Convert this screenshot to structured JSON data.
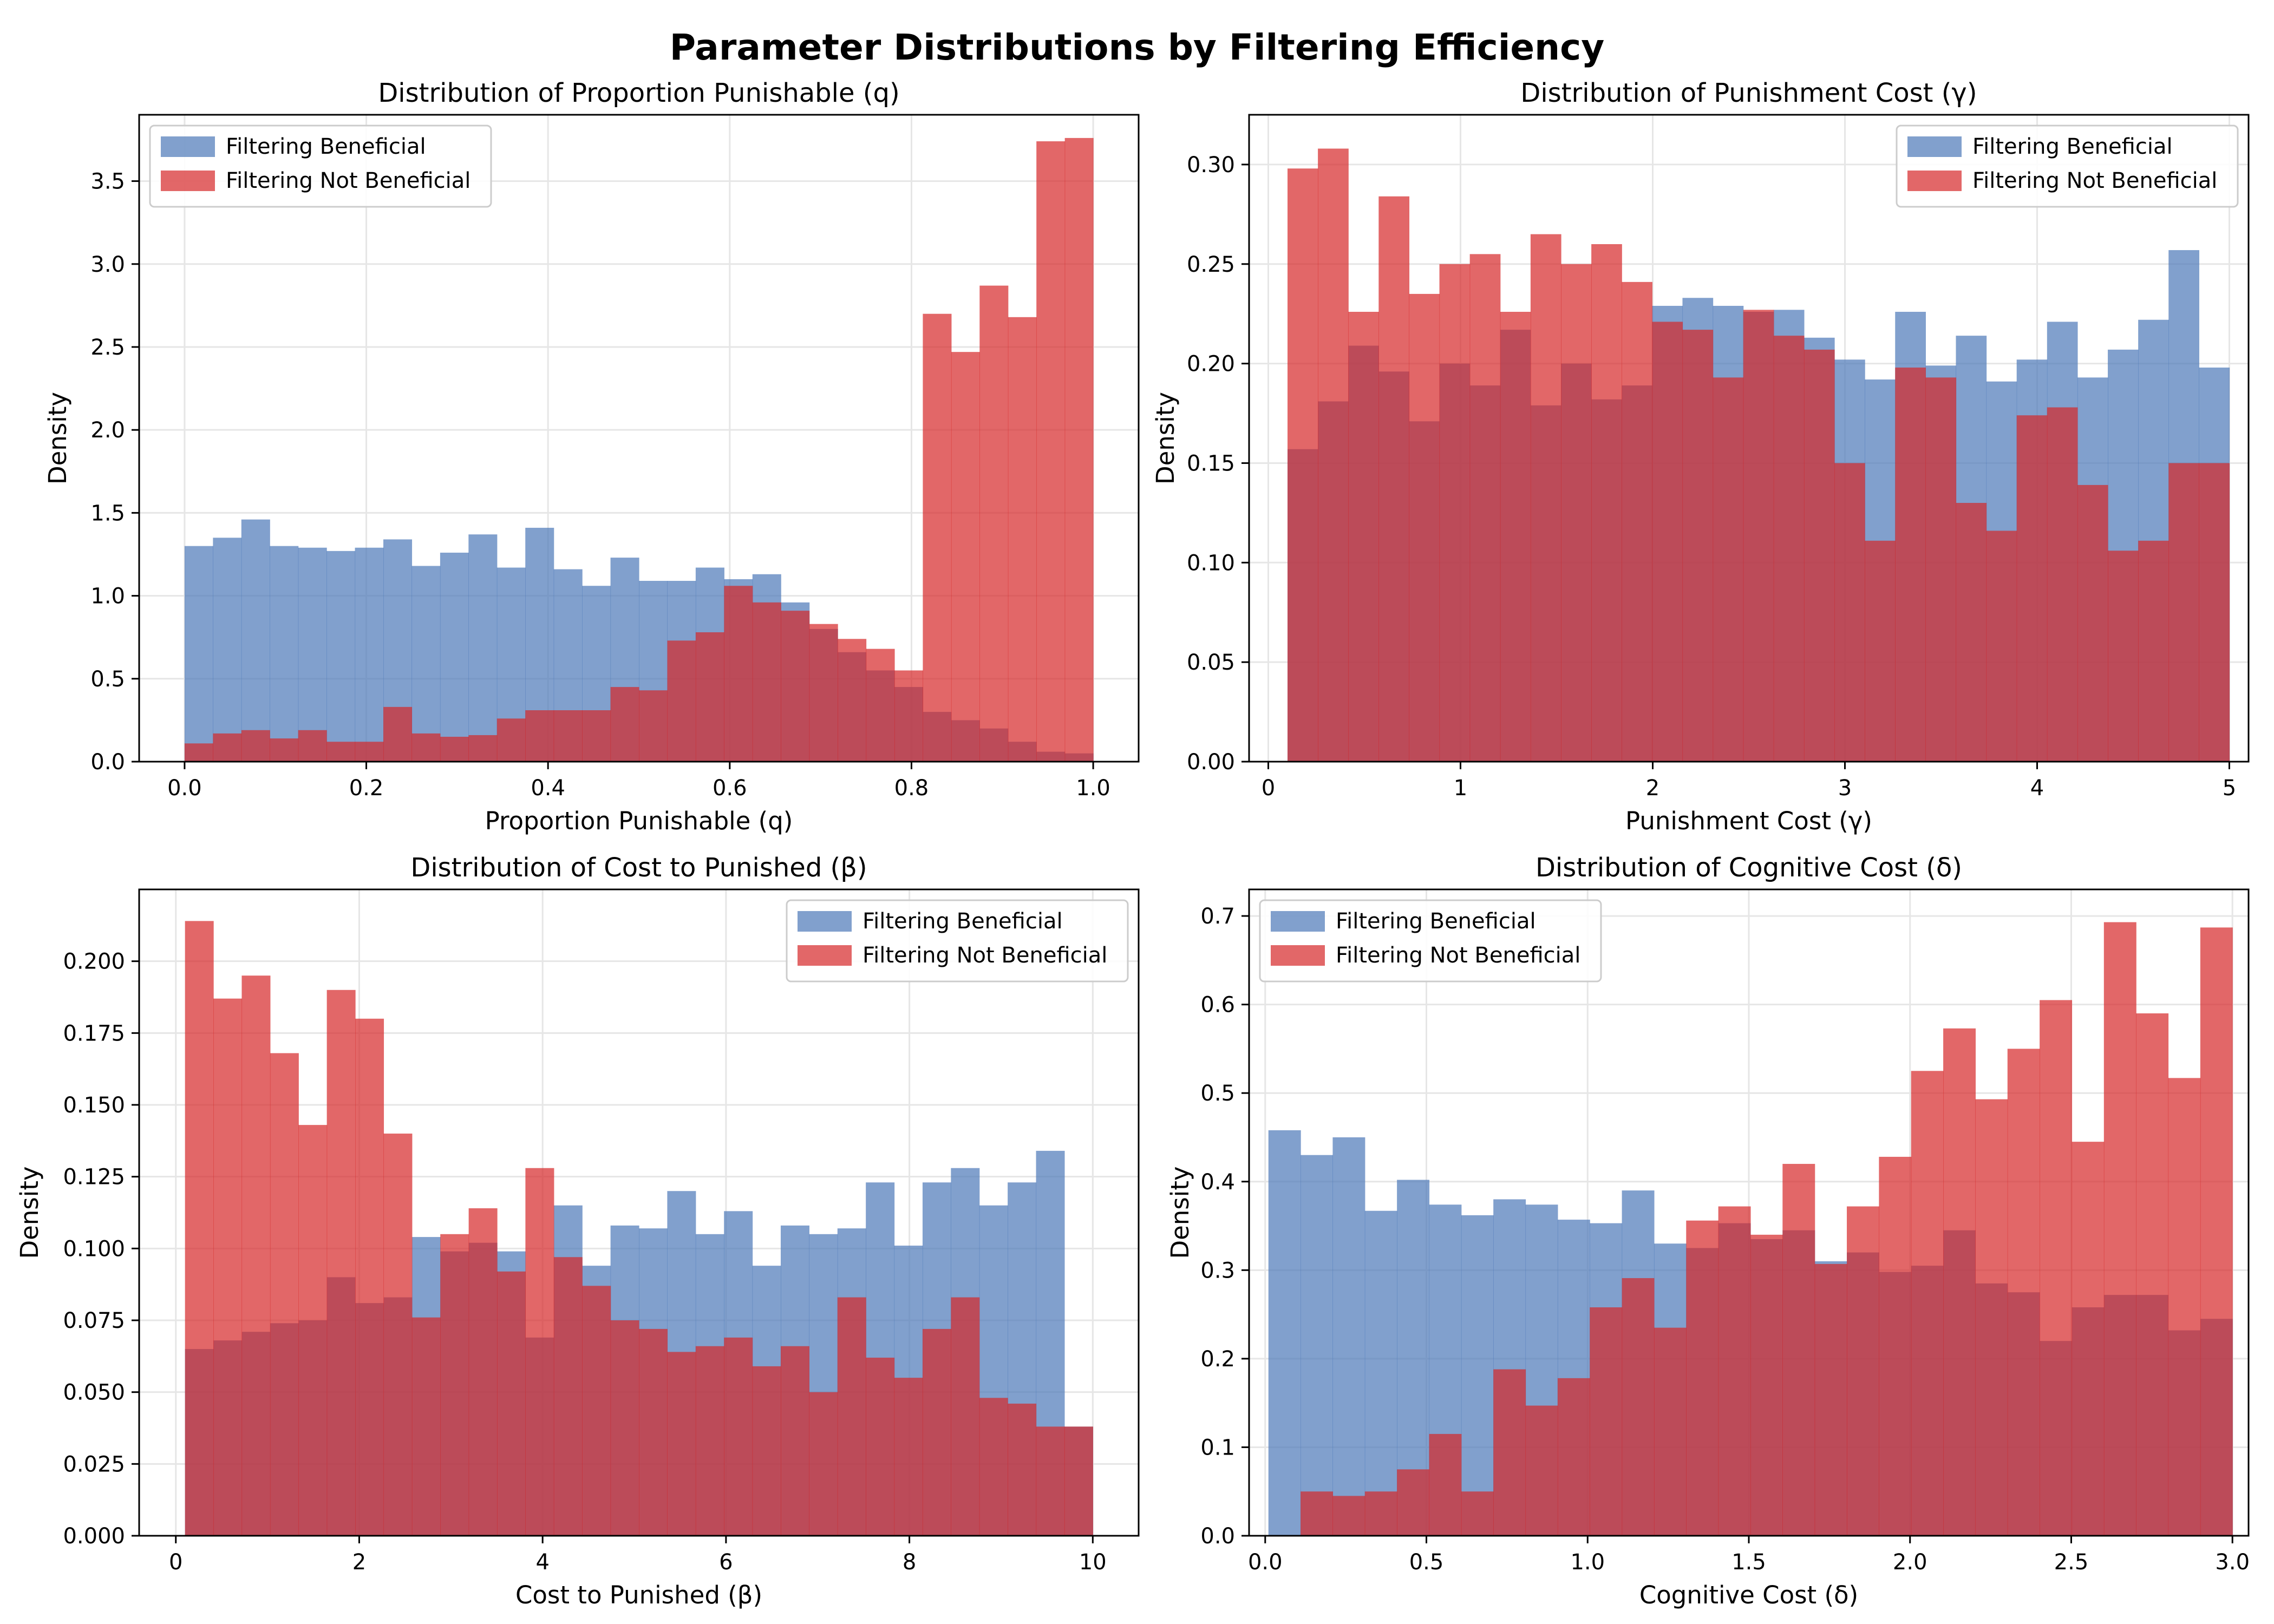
{
  "figure_title": "Parameter Distributions by Filtering Efficiency",
  "colors": {
    "beneficial": "#4C78B8",
    "not_beneficial": "#D62728",
    "grid": "#e6e6e6"
  },
  "chart_data": [
    {
      "type": "histogram",
      "title": "Distribution of Proportion Punishable (q)",
      "xlabel": "Proportion Punishable (q)",
      "ylabel": "Density",
      "xlim": [
        -0.05,
        1.05
      ],
      "ylim": [
        0,
        3.9
      ],
      "xticks": [
        0.0,
        0.2,
        0.4,
        0.6,
        0.8,
        1.0
      ],
      "xtick_labels": [
        "0.0",
        "0.2",
        "0.4",
        "0.6",
        "0.8",
        "1.0"
      ],
      "yticks": [
        0,
        0.5,
        1,
        1.5,
        2,
        2.5,
        3,
        3.5
      ],
      "ytick_labels": [
        "0.0",
        "0.5",
        "1.0",
        "1.5",
        "2.0",
        "2.5",
        "3.0",
        "3.5"
      ],
      "grid": true,
      "legend_position": "upper-left",
      "series": [
        {
          "name": "Filtering Beneficial",
          "bin_start": 0.0,
          "bin_end": 1.0,
          "values": [
            1.3,
            1.35,
            1.46,
            1.3,
            1.29,
            1.27,
            1.29,
            1.34,
            1.18,
            1.26,
            1.37,
            1.17,
            1.41,
            1.16,
            1.06,
            1.23,
            1.09,
            1.09,
            1.17,
            1.1,
            1.13,
            0.96,
            0.8,
            0.66,
            0.55,
            0.45,
            0.3,
            0.25,
            0.2,
            0.12,
            0.06,
            0.05
          ]
        },
        {
          "name": "Filtering Not Beneficial",
          "bin_start": 0.0,
          "bin_end": 1.0,
          "values": [
            0.11,
            0.17,
            0.19,
            0.14,
            0.19,
            0.12,
            0.12,
            0.33,
            0.17,
            0.15,
            0.16,
            0.26,
            0.31,
            0.31,
            0.31,
            0.45,
            0.43,
            0.73,
            0.78,
            1.06,
            0.96,
            0.91,
            0.83,
            0.74,
            0.68,
            0.55,
            2.7,
            2.47,
            2.87,
            2.68,
            3.74,
            3.76
          ]
        }
      ]
    },
    {
      "type": "histogram",
      "title": "Distribution of Punishment Cost (γ)",
      "xlabel": "Punishment Cost (γ)",
      "ylabel": "Density",
      "xlim": [
        -0.1,
        5.1
      ],
      "ylim": [
        0,
        0.325
      ],
      "xticks": [
        0,
        1,
        2,
        3,
        4,
        5
      ],
      "xtick_labels": [
        "0",
        "1",
        "2",
        "3",
        "4",
        "5"
      ],
      "yticks": [
        0,
        0.05,
        0.1,
        0.15,
        0.2,
        0.25,
        0.3
      ],
      "ytick_labels": [
        "0.00",
        "0.05",
        "0.10",
        "0.15",
        "0.20",
        "0.25",
        "0.30"
      ],
      "grid": true,
      "legend_position": "upper-right",
      "series": [
        {
          "name": "Filtering Beneficial",
          "bin_start": 0.1,
          "bin_end": 5.0,
          "values": [
            0.157,
            0.181,
            0.209,
            0.196,
            0.171,
            0.2,
            0.189,
            0.217,
            0.179,
            0.2,
            0.182,
            0.189,
            0.229,
            0.233,
            0.229,
            0.226,
            0.227,
            0.213,
            0.202,
            0.192,
            0.226,
            0.199,
            0.214,
            0.191,
            0.202,
            0.221,
            0.193,
            0.207,
            0.222,
            0.257,
            0.198
          ]
        },
        {
          "name": "Filtering Not Beneficial",
          "bin_start": 0.1,
          "bin_end": 5.0,
          "values": [
            0.298,
            0.308,
            0.226,
            0.284,
            0.235,
            0.25,
            0.255,
            0.226,
            0.265,
            0.25,
            0.26,
            0.241,
            0.221,
            0.217,
            0.193,
            0.227,
            0.214,
            0.207,
            0.15,
            0.111,
            0.198,
            0.193,
            0.13,
            0.116,
            0.174,
            0.178,
            0.139,
            0.106,
            0.111,
            0.15,
            0.15
          ]
        }
      ]
    },
    {
      "type": "histogram",
      "title": "Distribution of Cost to Punished (β)",
      "xlabel": "Cost to Punished (β)",
      "ylabel": "Density",
      "xlim": [
        -0.4,
        10.5
      ],
      "ylim": [
        0,
        0.225
      ],
      "xticks": [
        0,
        2,
        4,
        6,
        8,
        10
      ],
      "xtick_labels": [
        "0",
        "2",
        "4",
        "6",
        "8",
        "10"
      ],
      "yticks": [
        0,
        0.025,
        0.05,
        0.075,
        0.1,
        0.125,
        0.15,
        0.175,
        0.2
      ],
      "ytick_labels": [
        "0.000",
        "0.025",
        "0.050",
        "0.075",
        "0.100",
        "0.125",
        "0.150",
        "0.175",
        "0.200"
      ],
      "grid": true,
      "legend_position": "upper-right",
      "series": [
        {
          "name": "Filtering Beneficial",
          "bin_start": 0.1,
          "bin_end": 10.0,
          "values": [
            0.065,
            0.068,
            0.071,
            0.074,
            0.075,
            0.09,
            0.081,
            0.083,
            0.104,
            0.099,
            0.102,
            0.099,
            0.069,
            0.115,
            0.094,
            0.108,
            0.107,
            0.12,
            0.105,
            0.113,
            0.094,
            0.108,
            0.105,
            0.107,
            0.123,
            0.101,
            0.123,
            0.128,
            0.115,
            0.123,
            0.134,
            0.038
          ]
        },
        {
          "name": "Filtering Not Beneficial",
          "bin_start": 0.1,
          "bin_end": 10.0,
          "values": [
            0.214,
            0.187,
            0.195,
            0.168,
            0.143,
            0.19,
            0.18,
            0.14,
            0.076,
            0.105,
            0.114,
            0.092,
            0.128,
            0.097,
            0.087,
            0.075,
            0.072,
            0.064,
            0.066,
            0.069,
            0.059,
            0.066,
            0.05,
            0.083,
            0.062,
            0.055,
            0.072,
            0.083,
            0.048,
            0.046,
            0.038,
            0.038
          ]
        }
      ]
    },
    {
      "type": "histogram",
      "title": "Distribution of Cognitive Cost (δ)",
      "xlabel": "Cognitive Cost (δ)",
      "ylabel": "Density",
      "xlim": [
        -0.05,
        3.05
      ],
      "ylim": [
        0,
        0.73
      ],
      "xticks": [
        0,
        0.5,
        1,
        1.5,
        2,
        2.5,
        3
      ],
      "xtick_labels": [
        "0.0",
        "0.5",
        "1.0",
        "1.5",
        "2.0",
        "2.5",
        "3.0"
      ],
      "yticks": [
        0,
        0.1,
        0.2,
        0.3,
        0.4,
        0.5,
        0.6,
        0.7
      ],
      "ytick_labels": [
        "0.0",
        "0.1",
        "0.2",
        "0.3",
        "0.4",
        "0.5",
        "0.6",
        "0.7"
      ],
      "grid": true,
      "legend_position": "upper-left",
      "series": [
        {
          "name": "Filtering Beneficial",
          "bin_start": 0.01,
          "bin_end": 3.0,
          "values": [
            0.458,
            0.43,
            0.45,
            0.367,
            0.402,
            0.374,
            0.362,
            0.38,
            0.374,
            0.357,
            0.353,
            0.39,
            0.33,
            0.325,
            0.353,
            0.335,
            0.345,
            0.31,
            0.32,
            0.298,
            0.305,
            0.345,
            0.285,
            0.275,
            0.22,
            0.258,
            0.272,
            0.272,
            0.232,
            0.245
          ]
        },
        {
          "name": "Filtering Not Beneficial",
          "bin_start": 0.01,
          "bin_end": 3.0,
          "values": [
            0.0,
            0.05,
            0.045,
            0.05,
            0.075,
            0.115,
            0.05,
            0.188,
            0.147,
            0.178,
            0.258,
            0.291,
            0.235,
            0.356,
            0.372,
            0.34,
            0.42,
            0.307,
            0.372,
            0.428,
            0.525,
            0.573,
            0.493,
            0.55,
            0.605,
            0.445,
            0.693,
            0.59,
            0.517,
            0.687
          ]
        }
      ]
    }
  ]
}
